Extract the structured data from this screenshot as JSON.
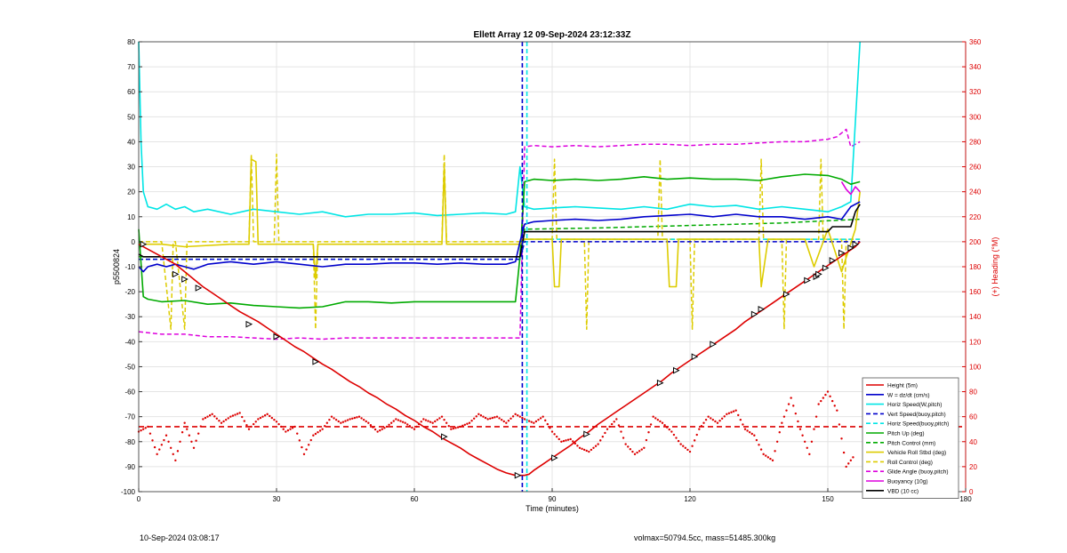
{
  "chart_data": {
    "type": "line",
    "title": "Ellett Array 12 09-Sep-2024 23:12:33Z",
    "xlabel": "Time (minutes)",
    "ylabel": "p5500824",
    "y2label": "(+) Heading (°M)",
    "xlim": [
      0,
      180
    ],
    "ylim": [
      -100,
      80
    ],
    "y2lim": [
      0,
      360
    ],
    "xticks": [
      0,
      30,
      60,
      90,
      120,
      150,
      180
    ],
    "yticks": [
      -100,
      -90,
      -80,
      -70,
      -60,
      -50,
      -40,
      -30,
      -20,
      -10,
      0,
      10,
      20,
      30,
      40,
      50,
      60,
      70,
      80
    ],
    "y2ticks": [
      0,
      20,
      40,
      60,
      80,
      100,
      120,
      140,
      160,
      180,
      200,
      220,
      240,
      260,
      280,
      300,
      320,
      340,
      360
    ],
    "grid": true,
    "legend_position": "bottom-right",
    "vlines": [
      {
        "x": 83.5,
        "color": "#0000cc",
        "style": "dashed"
      },
      {
        "x": 84.5,
        "color": "#00e5e5",
        "style": "dashed"
      }
    ],
    "hlines": [
      {
        "y": -74,
        "color": "#dd0000",
        "style": "dashed"
      }
    ],
    "heading_series": {
      "name": "",
      "color": "#dd0000",
      "axis": "right",
      "x": [
        0,
        2,
        4,
        6,
        8,
        10,
        12,
        14,
        16,
        18,
        20,
        22,
        24,
        26,
        28,
        30,
        32,
        34,
        36,
        38,
        40,
        42,
        44,
        46,
        48,
        50,
        52,
        54,
        56,
        58,
        60,
        62,
        64,
        66,
        68,
        70,
        72,
        74,
        76,
        78,
        80,
        82,
        84,
        86,
        88,
        90,
        92,
        94,
        96,
        98,
        100,
        102,
        104,
        106,
        108,
        110,
        112,
        114,
        116,
        118,
        120,
        122,
        124,
        126,
        128,
        130,
        132,
        134,
        136,
        138,
        140,
        142,
        144,
        146,
        148,
        150,
        152,
        154,
        156
      ],
      "y": [
        48,
        52,
        30,
        45,
        25,
        55,
        35,
        58,
        62,
        55,
        60,
        63,
        50,
        58,
        62,
        56,
        48,
        52,
        30,
        45,
        50,
        60,
        55,
        58,
        60,
        55,
        48,
        52,
        58,
        55,
        50,
        58,
        55,
        60,
        50,
        52,
        55,
        62,
        58,
        60,
        55,
        62,
        58,
        55,
        60,
        48,
        40,
        42,
        35,
        32,
        38,
        50,
        58,
        38,
        30,
        35,
        60,
        55,
        48,
        38,
        32,
        50,
        60,
        55,
        62,
        65,
        50,
        45,
        30,
        25,
        55,
        75,
        50,
        30,
        70,
        80,
        65,
        20,
        30
      ]
    },
    "series": [
      {
        "name": "Height (5m)",
        "color": "#dd0000",
        "style": "solid",
        "x": [
          0,
          2,
          4,
          6,
          8,
          10,
          12,
          14,
          16,
          18,
          20,
          22,
          24,
          26,
          28,
          30,
          32,
          34,
          36,
          38,
          40,
          42,
          44,
          46,
          48,
          50,
          52,
          54,
          56,
          58,
          60,
          62,
          64,
          66,
          68,
          70,
          72,
          74,
          76,
          78,
          80,
          82,
          83,
          84,
          85,
          86,
          88,
          90,
          92,
          94,
          96,
          98,
          100,
          102,
          104,
          106,
          108,
          110,
          112,
          114,
          116,
          118,
          120,
          122,
          124,
          126,
          128,
          130,
          132,
          134,
          136,
          138,
          140,
          142,
          144,
          146,
          148,
          150,
          152,
          154,
          156,
          157
        ],
        "y": [
          -1,
          -3,
          -5,
          -7,
          -9,
          -12,
          -15,
          -18,
          -20.5,
          -23,
          -25.5,
          -28,
          -30,
          -32,
          -34.5,
          -37,
          -39.5,
          -42,
          -44,
          -46.5,
          -49,
          -51,
          -53.5,
          -56,
          -58,
          -60.5,
          -62.5,
          -65,
          -67,
          -69.5,
          -71.5,
          -74,
          -76,
          -78.5,
          -80.5,
          -82.5,
          -85,
          -87,
          -89,
          -91,
          -92.5,
          -93.5,
          -93.5,
          -93.5,
          -93,
          -91.5,
          -89,
          -86.5,
          -84,
          -81.5,
          -78.5,
          -76,
          -73,
          -70.5,
          -68,
          -65.5,
          -63,
          -60.5,
          -58,
          -55.5,
          -52.5,
          -50,
          -47.5,
          -45,
          -42.5,
          -40,
          -37.5,
          -35,
          -32,
          -29.5,
          -27,
          -24.5,
          -22,
          -19.5,
          -17,
          -14.5,
          -12,
          -9.5,
          -7,
          -4.5,
          -2,
          0
        ]
      },
      {
        "name": "W = dz/dt (cm/s)",
        "color": "#0000cc",
        "style": "solid",
        "x": [
          0,
          1,
          2,
          4,
          6,
          8,
          10,
          12,
          15,
          20,
          25,
          30,
          35,
          40,
          45,
          50,
          55,
          60,
          65,
          70,
          75,
          80,
          82,
          83,
          84,
          86,
          90,
          95,
          100,
          105,
          110,
          115,
          120,
          125,
          130,
          135,
          140,
          145,
          150,
          153,
          155,
          157
        ],
        "y": [
          -10,
          -12,
          -10,
          -9,
          -10,
          -9,
          -10,
          -11,
          -9,
          -8,
          -9,
          -8,
          -9,
          -10,
          -9,
          -9,
          -8.5,
          -8.5,
          -9,
          -8.5,
          -9,
          -9,
          -8,
          0,
          7,
          8,
          8.5,
          9,
          8.5,
          9,
          10,
          10.5,
          11,
          10,
          11,
          10,
          10,
          9,
          10,
          9,
          14,
          16
        ]
      },
      {
        "name": "Horiz Speed(W,pitch)",
        "color": "#00e5e5",
        "style": "solid",
        "x": [
          0,
          0.5,
          1,
          2,
          4,
          6,
          8,
          10,
          12,
          15,
          20,
          25,
          30,
          35,
          40,
          45,
          50,
          55,
          60,
          65,
          70,
          75,
          80,
          82,
          83,
          84,
          86,
          90,
          95,
          100,
          105,
          110,
          115,
          120,
          125,
          130,
          135,
          140,
          145,
          150,
          153,
          155,
          157
        ],
        "y": [
          80,
          40,
          20,
          14,
          13,
          15,
          13,
          14,
          12,
          13,
          11,
          13,
          12,
          11,
          12,
          10,
          11,
          11,
          11.5,
          10.5,
          11,
          11.5,
          11,
          12,
          30,
          14,
          13,
          13.5,
          14,
          13.5,
          13,
          14,
          13,
          15,
          14,
          14.5,
          13,
          14,
          13,
          12,
          14,
          16,
          80
        ]
      },
      {
        "name": "Vert Speed(buoy,pitch)",
        "color": "#0000cc",
        "style": "dashed",
        "x": [
          0,
          83,
          84,
          157
        ],
        "y": [
          -7,
          -7,
          0,
          0
        ]
      },
      {
        "name": "Horiz Speed(buoy,pitch)",
        "color": "#00e5e5",
        "style": "dashed",
        "x": [
          0,
          83,
          84,
          157
        ],
        "y": [
          -7,
          -7,
          1,
          1
        ]
      },
      {
        "name": "Pitch Up (deg)",
        "color": "#00aa00",
        "style": "solid",
        "x": [
          0,
          1,
          2,
          5,
          10,
          15,
          20,
          25,
          30,
          35,
          40,
          45,
          50,
          55,
          60,
          65,
          70,
          75,
          80,
          82,
          83,
          84,
          86,
          90,
          95,
          100,
          105,
          110,
          115,
          120,
          125,
          130,
          135,
          140,
          145,
          150,
          153,
          155,
          157
        ],
        "y": [
          5,
          -22,
          -23,
          -24,
          -23.5,
          -25,
          -24.5,
          -25.5,
          -26,
          -26.5,
          -26,
          -24,
          -24,
          -24.5,
          -24,
          -24,
          -24,
          -24,
          -24,
          -24,
          -6,
          24,
          25,
          24.5,
          25,
          24.5,
          25,
          26,
          25,
          25.5,
          25,
          25,
          24.5,
          26,
          27,
          26.5,
          25,
          23,
          24
        ]
      },
      {
        "name": "Pitch Control (mm)",
        "color": "#00aa00",
        "style": "dashed",
        "x": [
          0,
          83,
          84,
          100,
          120,
          140,
          157
        ],
        "y": [
          -6,
          -6,
          5,
          5.5,
          6.5,
          7.5,
          9
        ]
      },
      {
        "name": "Vehicle Roll Stbd (deg)",
        "color": "#ddcc00",
        "style": "solid",
        "x": [
          0,
          5,
          10,
          20,
          24,
          24.5,
          25.5,
          26,
          30,
          38,
          38.5,
          39,
          40,
          60,
          66,
          66.5,
          67,
          83,
          84,
          90,
          90.5,
          91.5,
          92,
          100,
          110,
          115,
          115.5,
          117,
          117.5,
          130,
          135,
          135.5,
          137,
          140,
          145,
          147,
          150,
          153,
          156,
          157
        ],
        "y": [
          -1,
          -1,
          -2,
          -1,
          -1,
          33,
          32,
          -1,
          -1,
          -1,
          -15,
          -1,
          -1,
          -1,
          -1,
          30,
          -1,
          -1,
          1,
          1,
          -18,
          -18,
          1,
          1,
          1,
          1,
          -18,
          -18,
          1,
          1,
          1,
          -18,
          1,
          1,
          1,
          -10,
          5,
          -12,
          5,
          20
        ]
      },
      {
        "name": "Roll Control (deg)",
        "color": "#ddcc00",
        "style": "dashed",
        "x": [
          0,
          5,
          7,
          7.5,
          8,
          10,
          10.5,
          11,
          24,
          24.5,
          25,
          29.5,
          30,
          30.5,
          38,
          38.5,
          39,
          66,
          66.5,
          67,
          83,
          84,
          90,
          90.5,
          91,
          97,
          97.5,
          98,
          113,
          113.5,
          114,
          120,
          120.5,
          121,
          135,
          135.5,
          136,
          140,
          140.5,
          141,
          148,
          148.5,
          149,
          153,
          153.5,
          154,
          157
        ],
        "y": [
          0,
          0,
          -35,
          0,
          0,
          -35,
          0,
          0,
          0,
          35,
          0,
          0,
          35,
          0,
          0,
          -35,
          0,
          0,
          35,
          0,
          0,
          1,
          1,
          33,
          1,
          1,
          -35,
          1,
          1,
          33,
          1,
          1,
          -35,
          1,
          1,
          33,
          1,
          1,
          -35,
          1,
          1,
          33,
          1,
          1,
          -35,
          1,
          1
        ]
      },
      {
        "name": "Glide Angle (buoy,pitch)",
        "color": "#dd00dd",
        "style": "dashed",
        "x": [
          0,
          5,
          10,
          15,
          20,
          25,
          30,
          35,
          40,
          45,
          50,
          55,
          60,
          65,
          70,
          75,
          80,
          82,
          83,
          84,
          86,
          90,
          95,
          100,
          105,
          110,
          115,
          120,
          125,
          130,
          135,
          140,
          145,
          150,
          152,
          154,
          155,
          157
        ],
        "y": [
          -36,
          -37,
          -37,
          -38,
          -38,
          -38.5,
          -39,
          -38.5,
          -39,
          -38.5,
          -38.5,
          -38.5,
          -38.5,
          -38.5,
          -38.5,
          -38.5,
          -38.5,
          -38.5,
          -38.5,
          38,
          38.5,
          38,
          38.5,
          38,
          38.5,
          39,
          39,
          38.5,
          39,
          39,
          39.5,
          40,
          40,
          41,
          42,
          45,
          38,
          40
        ]
      },
      {
        "name": "Buoyancy (10g)",
        "color": "#dd00dd",
        "style": "solid",
        "x": [
          153,
          154,
          155,
          156,
          157
        ],
        "y": [
          24,
          21,
          19,
          22,
          20
        ]
      },
      {
        "name": "VBD (10 cc)",
        "color": "#000000",
        "style": "solid",
        "x": [
          0,
          1,
          5,
          83,
          84,
          86,
          150,
          151,
          155,
          156,
          157
        ],
        "y": [
          -5,
          -6,
          -6,
          -6,
          4,
          4,
          4,
          6,
          6,
          12,
          15
        ]
      }
    ],
    "markers": {
      "name": "",
      "color": "#000000",
      "x": [
        1,
        8,
        10,
        13,
        24,
        30,
        38.5,
        66.5,
        82.5,
        90.5,
        97.5,
        113.5,
        117,
        121,
        125,
        134,
        135.5,
        141,
        145.5,
        147.5,
        148,
        149.5,
        151,
        153,
        155,
        156
      ],
      "y": [
        -1,
        -13,
        -15,
        -18.5,
        -33,
        -38,
        -48,
        -78,
        -93.5,
        -86.5,
        -77,
        -56.5,
        -51.5,
        -46,
        -41,
        -29,
        -27,
        -21,
        -15.5,
        -14,
        -13,
        -10.5,
        -7.5,
        -4.5,
        -2.5,
        -1
      ]
    }
  },
  "footer": {
    "left": "10-Sep-2024 03:08:17",
    "right": "volmax=50794.5cc, mass=51485.300kg"
  }
}
